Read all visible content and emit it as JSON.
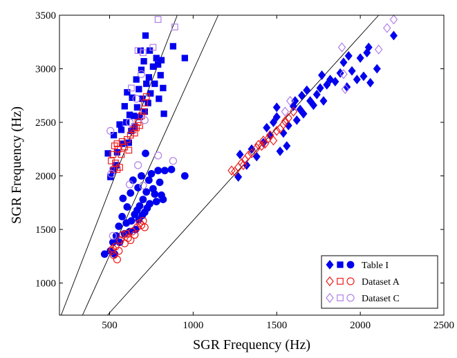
{
  "chart_data": {
    "type": "scatter",
    "xlabel": "SGR Frequency (Hz)",
    "ylabel": "SGR Frequency (Hz)",
    "xlim": [
      200,
      2500
    ],
    "ylim": [
      700,
      3500
    ],
    "xticks": [
      500,
      1000,
      1500,
      2000,
      2500
    ],
    "yticks": [
      1000,
      1500,
      2000,
      2500,
      3000,
      3500
    ],
    "grid": false,
    "legend_position": "bottom-right",
    "reference_lines": [
      {
        "points": [
          [
            210,
            700
          ],
          [
            905,
            3500
          ]
        ]
      },
      {
        "points": [
          [
            338,
            700
          ],
          [
            1150,
            3500
          ]
        ]
      },
      {
        "points": [
          [
            487,
            700
          ],
          [
            2110,
            3500
          ]
        ]
      }
    ],
    "series": [
      {
        "name": "Table I",
        "color": "#0000ee",
        "markers": [
          "diamond",
          "square",
          "circle"
        ],
        "groups": [
          {
            "marker": "square",
            "points": [
              [
                490,
                2210
              ],
              [
                505,
                1990
              ],
              [
                520,
                2050
              ],
              [
                525,
                2380
              ],
              [
                540,
                2100
              ],
              [
                545,
                2220
              ],
              [
                560,
                2480
              ],
              [
                570,
                2430
              ],
              [
                575,
                2300
              ],
              [
                590,
                2650
              ],
              [
                600,
                2500
              ],
              [
                605,
                2780
              ],
              [
                615,
                2310
              ],
              [
                620,
                2570
              ],
              [
                630,
                2420
              ],
              [
                635,
                2730
              ],
              [
                645,
                2560
              ],
              [
                650,
                2460
              ],
              [
                660,
                2900
              ],
              [
                665,
                2640
              ],
              [
                675,
                2810
              ],
              [
                680,
                2550
              ],
              [
                685,
                3170
              ],
              [
                690,
                2990
              ],
              [
                695,
                2720
              ],
              [
                705,
                3070
              ],
              [
                710,
                2600
              ],
              [
                715,
                3310
              ],
              [
                720,
                2860
              ],
              [
                730,
                2680
              ],
              [
                735,
                2920
              ],
              [
                740,
                3170
              ],
              [
                745,
                2770
              ],
              [
                760,
                3020
              ],
              [
                770,
                2860
              ],
              [
                780,
                3100
              ],
              [
                790,
                3040
              ],
              [
                795,
                2720
              ],
              [
                805,
                2940
              ],
              [
                810,
                3080
              ],
              [
                820,
                2820
              ],
              [
                825,
                2580
              ],
              [
                880,
                3210
              ],
              [
                950,
                3100
              ]
            ]
          },
          {
            "marker": "circle",
            "points": [
              [
                470,
                1270
              ],
              [
                505,
                1300
              ],
              [
                520,
                1380
              ],
              [
                530,
                1270
              ],
              [
                540,
                1440
              ],
              [
                555,
                1530
              ],
              [
                560,
                1380
              ],
              [
                575,
                1620
              ],
              [
                580,
                1790
              ],
              [
                590,
                1460
              ],
              [
                600,
                1560
              ],
              [
                605,
                1710
              ],
              [
                620,
                1480
              ],
              [
                625,
                1840
              ],
              [
                630,
                1580
              ],
              [
                640,
                1960
              ],
              [
                650,
                1640
              ],
              [
                655,
                1500
              ],
              [
                665,
                1680
              ],
              [
                670,
                1890
              ],
              [
                675,
                1590
              ],
              [
                680,
                1720
              ],
              [
                690,
                2000
              ],
              [
                695,
                1630
              ],
              [
                700,
                1780
              ],
              [
                710,
                1660
              ],
              [
                715,
                2210
              ],
              [
                720,
                1850
              ],
              [
                725,
                1700
              ],
              [
                735,
                1960
              ],
              [
                740,
                1740
              ],
              [
                750,
                2020
              ],
              [
                760,
                1880
              ],
              [
                770,
                1830
              ],
              [
                780,
                1760
              ],
              [
                790,
                2050
              ],
              [
                800,
                1940
              ],
              [
                810,
                1820
              ],
              [
                820,
                1780
              ],
              [
                830,
                2050
              ],
              [
                870,
                2060
              ],
              [
                950,
                2000
              ]
            ]
          },
          {
            "marker": "diamond",
            "points": [
              [
                1270,
                1990
              ],
              [
                1280,
                2200
              ],
              [
                1320,
                2100
              ],
              [
                1350,
                2250
              ],
              [
                1380,
                2180
              ],
              [
                1420,
                2310
              ],
              [
                1440,
                2450
              ],
              [
                1460,
                2380
              ],
              [
                1480,
                2500
              ],
              [
                1500,
                2550
              ],
              [
                1520,
                2230
              ],
              [
                1540,
                2400
              ],
              [
                1560,
                2280
              ],
              [
                1570,
                2470
              ],
              [
                1600,
                2650
              ],
              [
                1610,
                2700
              ],
              [
                1620,
                2520
              ],
              [
                1640,
                2620
              ],
              [
                1650,
                2750
              ],
              [
                1660,
                2580
              ],
              [
                1680,
                2800
              ],
              [
                1700,
                2700
              ],
              [
                1720,
                2660
              ],
              [
                1740,
                2760
              ],
              [
                1760,
                2820
              ],
              [
                1780,
                2700
              ],
              [
                1800,
                2850
              ],
              [
                1820,
                2900
              ],
              [
                1850,
                2880
              ],
              [
                1880,
                2960
              ],
              [
                1900,
                3060
              ],
              [
                1920,
                2830
              ],
              [
                1950,
                2980
              ],
              [
                1980,
                2900
              ],
              [
                2000,
                3100
              ],
              [
                2020,
                2930
              ],
              [
                2040,
                3150
              ],
              [
                2050,
                3200
              ],
              [
                2060,
                2870
              ],
              [
                2100,
                3000
              ],
              [
                2200,
                3310
              ],
              [
                1500,
                2640
              ],
              [
                1770,
                2940
              ],
              [
                1930,
                3120
              ]
            ]
          }
        ]
      },
      {
        "name": "Dataset A",
        "color": "#ee1c1c",
        "markers": [
          "diamond",
          "square",
          "circle"
        ],
        "groups": [
          {
            "marker": "square",
            "points": [
              [
                510,
                2140
              ],
              [
                520,
                2200
              ],
              [
                525,
                2060
              ],
              [
                530,
                2280
              ],
              [
                535,
                2120
              ],
              [
                545,
                2300
              ],
              [
                550,
                2250
              ],
              [
                560,
                2080
              ],
              [
                570,
                2200
              ],
              [
                575,
                2320
              ],
              [
                590,
                2270
              ],
              [
                605,
                2340
              ],
              [
                615,
                2240
              ],
              [
                625,
                2380
              ],
              [
                640,
                2430
              ],
              [
                650,
                2400
              ],
              [
                660,
                2450
              ],
              [
                670,
                2500
              ],
              [
                680,
                2470
              ],
              [
                690,
                2560
              ],
              [
                700,
                2600
              ],
              [
                710,
                2680
              ],
              [
                720,
                2740
              ],
              [
                545,
                2060
              ]
            ]
          },
          {
            "marker": "circle",
            "points": [
              [
                515,
                1300
              ],
              [
                525,
                1260
              ],
              [
                535,
                1340
              ],
              [
                545,
                1220
              ],
              [
                555,
                1300
              ],
              [
                565,
                1400
              ],
              [
                580,
                1450
              ],
              [
                590,
                1370
              ],
              [
                600,
                1460
              ],
              [
                610,
                1420
              ],
              [
                625,
                1400
              ],
              [
                635,
                1480
              ],
              [
                650,
                1450
              ],
              [
                665,
                1520
              ],
              [
                680,
                1560
              ],
              [
                690,
                1540
              ],
              [
                700,
                1580
              ],
              [
                710,
                1520
              ],
              [
                520,
                1320
              ]
            ]
          },
          {
            "marker": "diamond",
            "points": [
              [
                1230,
                2050
              ],
              [
                1250,
                2040
              ],
              [
                1270,
                2080
              ],
              [
                1290,
                2120
              ],
              [
                1310,
                2150
              ],
              [
                1330,
                2190
              ],
              [
                1350,
                2210
              ],
              [
                1380,
                2260
              ],
              [
                1390,
                2290
              ],
              [
                1410,
                2280
              ],
              [
                1430,
                2300
              ],
              [
                1450,
                2350
              ],
              [
                1460,
                2380
              ],
              [
                1480,
                2330
              ],
              [
                1500,
                2420
              ],
              [
                1520,
                2440
              ],
              [
                1540,
                2480
              ],
              [
                1550,
                2510
              ],
              [
                1570,
                2540
              ],
              [
                1600,
                2600
              ],
              [
                1300,
                2100
              ],
              [
                1420,
                2330
              ]
            ]
          }
        ]
      },
      {
        "name": "Dataset C",
        "color": "#b07ee6",
        "markers": [
          "diamond",
          "square",
          "circle"
        ],
        "groups": [
          {
            "marker": "square",
            "points": [
              [
                670,
                3170
              ],
              [
                700,
                3150
              ],
              [
                760,
                3200
              ],
              [
                790,
                3460
              ],
              [
                890,
                3390
              ],
              [
                630,
                2820
              ]
            ]
          },
          {
            "marker": "circle",
            "points": [
              [
                505,
                2420
              ],
              [
                510,
                2020
              ],
              [
                520,
                1440
              ],
              [
                620,
                2500
              ],
              [
                620,
                1920
              ],
              [
                660,
                2720
              ],
              [
                670,
                2100
              ],
              [
                690,
                2950
              ],
              [
                700,
                1910
              ],
              [
                710,
                2520
              ],
              [
                790,
                2190
              ],
              [
                880,
                2140
              ]
            ]
          },
          {
            "marker": "diamond",
            "points": [
              [
                1550,
                2600
              ],
              [
                1580,
                2700
              ],
              [
                1890,
                3200
              ],
              [
                1900,
                2950
              ],
              [
                1910,
                2810
              ],
              [
                2110,
                3180
              ],
              [
                2160,
                3380
              ],
              [
                2200,
                3460
              ]
            ]
          }
        ]
      }
    ]
  }
}
